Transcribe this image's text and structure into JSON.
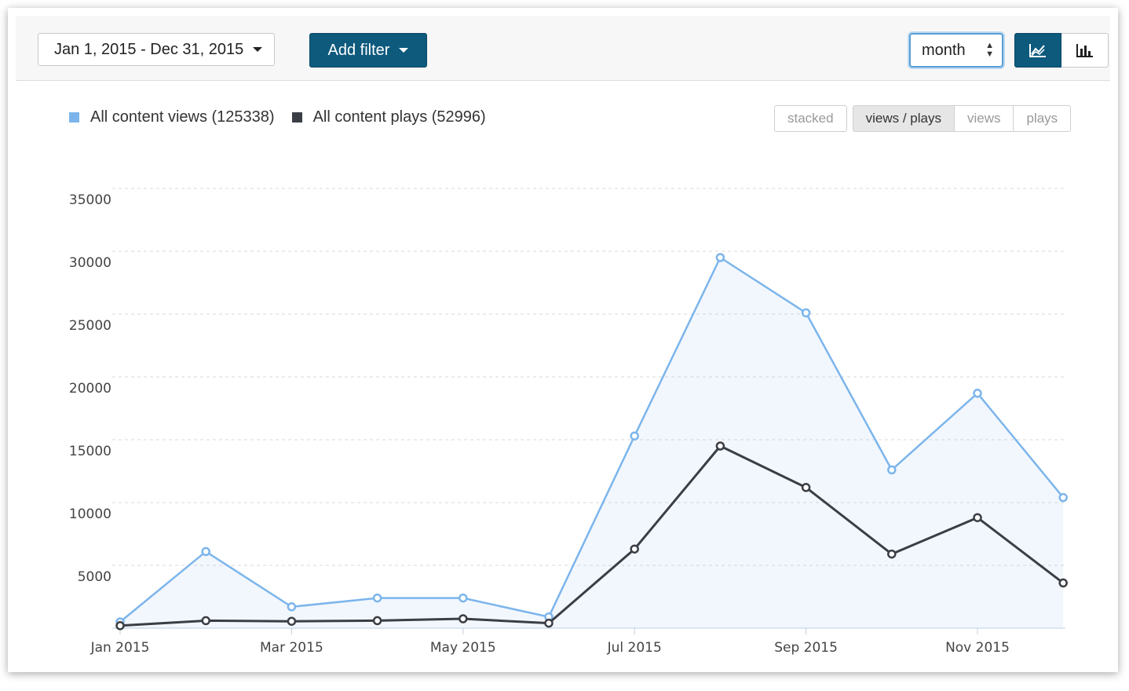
{
  "toolbar": {
    "date_range": "Jan 1, 2015 - Dec 31, 2015",
    "add_filter": "Add filter",
    "period": "month"
  },
  "legend": {
    "views_label": "All content views (125338)",
    "plays_label": "All content plays (52996)"
  },
  "modes": {
    "stacked": "stacked",
    "views_plays": "views / plays",
    "views": "views",
    "plays": "plays",
    "active": "views / plays"
  },
  "colors": {
    "views": "#7cb5ec",
    "plays": "#3b3e44",
    "accent": "#0d5a7d"
  },
  "chart_data": {
    "type": "line",
    "x": [
      "2015-01",
      "2015-02",
      "2015-03",
      "2015-04",
      "2015-05",
      "2015-06",
      "2015-07",
      "2015-08",
      "2015-09",
      "2015-10",
      "2015-11",
      "2015-12"
    ],
    "x_tick_labels": [
      "Jan 2015",
      "Mar 2015",
      "May 2015",
      "Jul 2015",
      "Sep 2015",
      "Nov 2015"
    ],
    "y_ticks": [
      5000,
      10000,
      15000,
      20000,
      25000,
      30000,
      35000
    ],
    "ylim": [
      0,
      35000
    ],
    "grid": true,
    "legend_position": "top-left",
    "series": [
      {
        "name": "All content views (125338)",
        "color": "#7cb5ec",
        "area": true,
        "values": [
          500,
          6100,
          1700,
          2400,
          2400,
          900,
          15300,
          29500,
          25100,
          12600,
          18700,
          10400
        ]
      },
      {
        "name": "All content plays (52996)",
        "color": "#3b3e44",
        "area": false,
        "values": [
          200,
          600,
          550,
          600,
          750,
          400,
          6300,
          14500,
          11200,
          5900,
          8800,
          3600
        ]
      }
    ]
  }
}
